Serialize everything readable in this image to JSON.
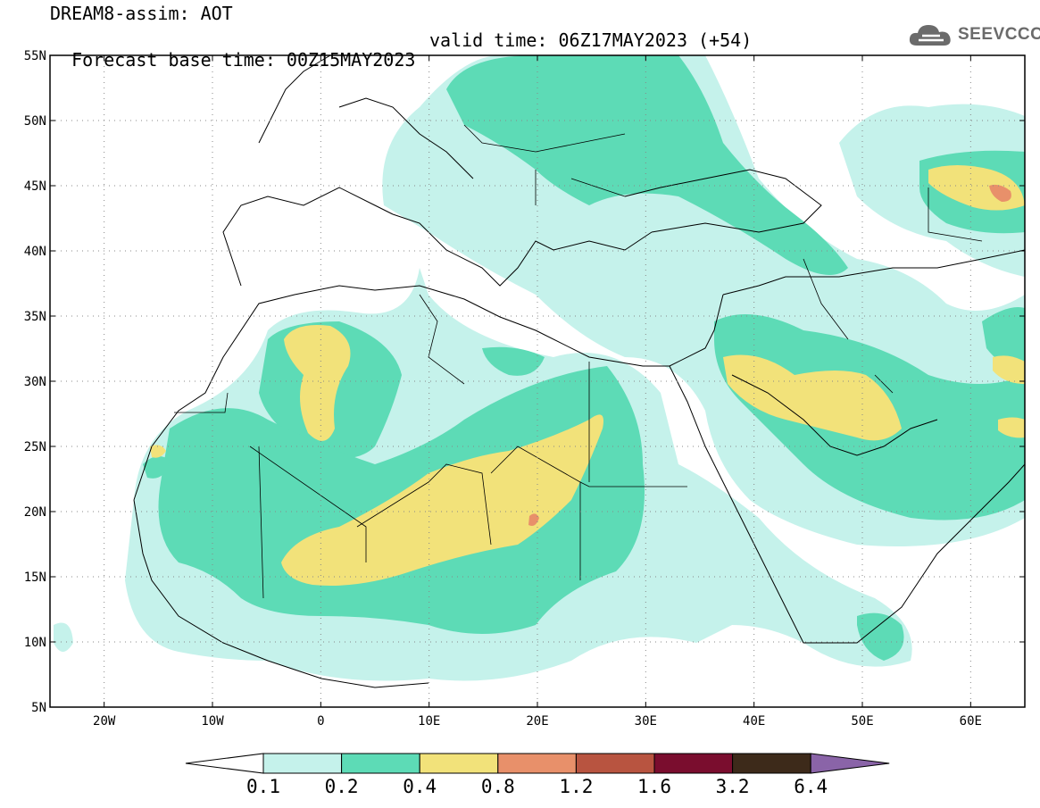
{
  "header": {
    "line1": "DREAM8-assim: AOT",
    "line2_base": "Forecast base time: 00Z15MAY2023",
    "line2_valid": "valid time: 06Z17MAY2023 (+54)"
  },
  "logo": {
    "text": "SEEVCCC",
    "icon": "cloud-icon"
  },
  "map": {
    "lat_labels": [
      "55N",
      "50N",
      "45N",
      "40N",
      "35N",
      "30N",
      "25N",
      "20N",
      "15N",
      "10N",
      "5N"
    ],
    "lon_labels": [
      "20W",
      "10W",
      "0",
      "10E",
      "20E",
      "30E",
      "40E",
      "50E",
      "60E"
    ],
    "grid": "dotted",
    "extent": {
      "lon": [
        -25,
        65
      ],
      "lat": [
        5,
        55
      ]
    }
  },
  "colorbar": {
    "labels": [
      "0.1",
      "0.2",
      "0.4",
      "0.8",
      "1.2",
      "1.6",
      "3.2",
      "6.4"
    ],
    "colors": [
      "#c5f2eb",
      "#5ddbb6",
      "#f2e27a",
      "#e8906a",
      "#b85440",
      "#7a0d2e",
      "#3d2a1a",
      "#8a64a8"
    ]
  }
}
